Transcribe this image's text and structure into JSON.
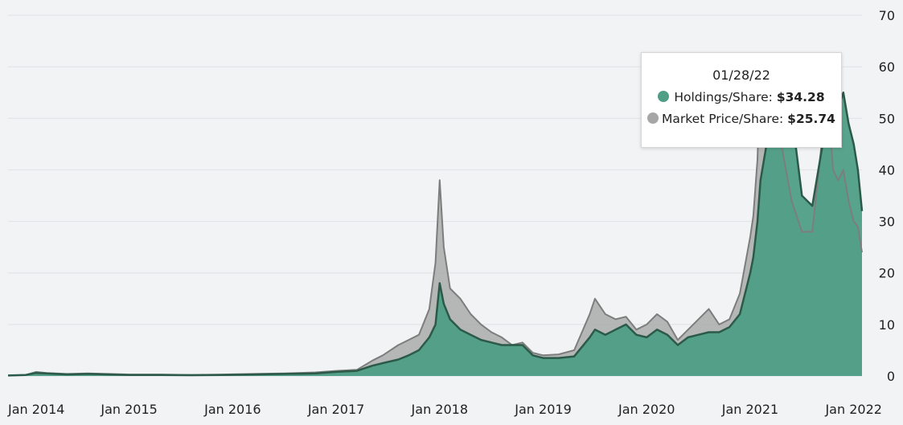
{
  "chart_data": {
    "type": "area",
    "title": "",
    "xlabel": "",
    "ylabel": "",
    "ylim": [
      0,
      70
    ],
    "yticks": [
      0,
      10,
      20,
      30,
      40,
      50,
      60,
      70
    ],
    "xticks": [
      "Jan 2014",
      "Jan 2015",
      "Jan 2016",
      "Jan 2017",
      "Jan 2018",
      "Jan 2019",
      "Jan 2020",
      "Jan 2021",
      "Jan 2022"
    ],
    "grid": true,
    "x": [
      2013.83,
      2014.0,
      2014.1,
      2014.2,
      2014.4,
      2014.6,
      2014.8,
      2015.0,
      2015.3,
      2015.6,
      2015.9,
      2016.2,
      2016.5,
      2016.8,
      2017.0,
      2017.2,
      2017.35,
      2017.45,
      2017.6,
      2017.7,
      2017.8,
      2017.9,
      2017.96,
      2018.0,
      2018.04,
      2018.1,
      2018.2,
      2018.3,
      2018.4,
      2018.5,
      2018.6,
      2018.7,
      2018.8,
      2018.9,
      2019.0,
      2019.15,
      2019.3,
      2019.45,
      2019.5,
      2019.6,
      2019.7,
      2019.8,
      2019.9,
      2020.0,
      2020.1,
      2020.2,
      2020.3,
      2020.4,
      2020.5,
      2020.6,
      2020.7,
      2020.8,
      2020.9,
      2021.0,
      2021.03,
      2021.07,
      2021.1,
      2021.15,
      2021.2,
      2021.3,
      2021.4,
      2021.5,
      2021.6,
      2021.7,
      2021.75,
      2021.8,
      2021.85,
      2021.9,
      2021.95,
      2022.0,
      2022.04,
      2022.08
    ],
    "series": [
      {
        "name": "Holdings/Share",
        "color": "#4f9e86",
        "line_color": "#2b5a48",
        "values": [
          0.1,
          0.2,
          0.6,
          0.5,
          0.3,
          0.4,
          0.3,
          0.2,
          0.2,
          0.15,
          0.2,
          0.3,
          0.4,
          0.5,
          0.8,
          1.0,
          2.0,
          2.5,
          3.2,
          4.0,
          5.0,
          7.5,
          10.0,
          18.0,
          14.0,
          11.0,
          9.0,
          8.0,
          7.0,
          6.5,
          6.0,
          6.0,
          6.0,
          4.0,
          3.5,
          3.5,
          3.8,
          7.5,
          9.0,
          8.0,
          9.0,
          10.0,
          8.0,
          7.5,
          9.0,
          8.0,
          6.0,
          7.5,
          8.0,
          8.5,
          8.5,
          9.5,
          12.0,
          20.0,
          23.0,
          30.0,
          38.0,
          44.0,
          52.0,
          57.0,
          51.0,
          35.0,
          33.0,
          45.0,
          51.0,
          46.0,
          52.0,
          55.0,
          49.0,
          45.0,
          40.0,
          32.0
        ]
      },
      {
        "name": "Market Price/Share",
        "color": "#aaaaaa",
        "line_color": "#7d7d7d",
        "values": [
          0.1,
          0.2,
          0.8,
          0.6,
          0.4,
          0.5,
          0.4,
          0.3,
          0.3,
          0.2,
          0.3,
          0.4,
          0.5,
          0.7,
          1.0,
          1.2,
          3.0,
          4.0,
          6.0,
          7.0,
          8.0,
          13.0,
          22.0,
          38.0,
          25.0,
          17.0,
          15.0,
          12.0,
          10.0,
          8.5,
          7.5,
          6.0,
          6.5,
          4.5,
          4.0,
          4.2,
          5.0,
          12.0,
          15.0,
          12.0,
          11.0,
          11.5,
          9.0,
          10.0,
          12.0,
          10.5,
          7.0,
          9.0,
          11.0,
          13.0,
          10.0,
          11.0,
          16.0,
          27.0,
          31.0,
          42.0,
          60.0,
          58.0,
          56.0,
          45.0,
          34.0,
          28.0,
          28.0,
          47.0,
          55.0,
          40.0,
          38.0,
          40.0,
          34.0,
          30.0,
          29.0,
          24.0
        ]
      }
    ]
  },
  "tooltip": {
    "date": "01/28/22",
    "holdings_label": "Holdings/Share:",
    "holdings_value": "$34.28",
    "market_label": "Market Price/Share:",
    "market_value": "$25.74"
  }
}
